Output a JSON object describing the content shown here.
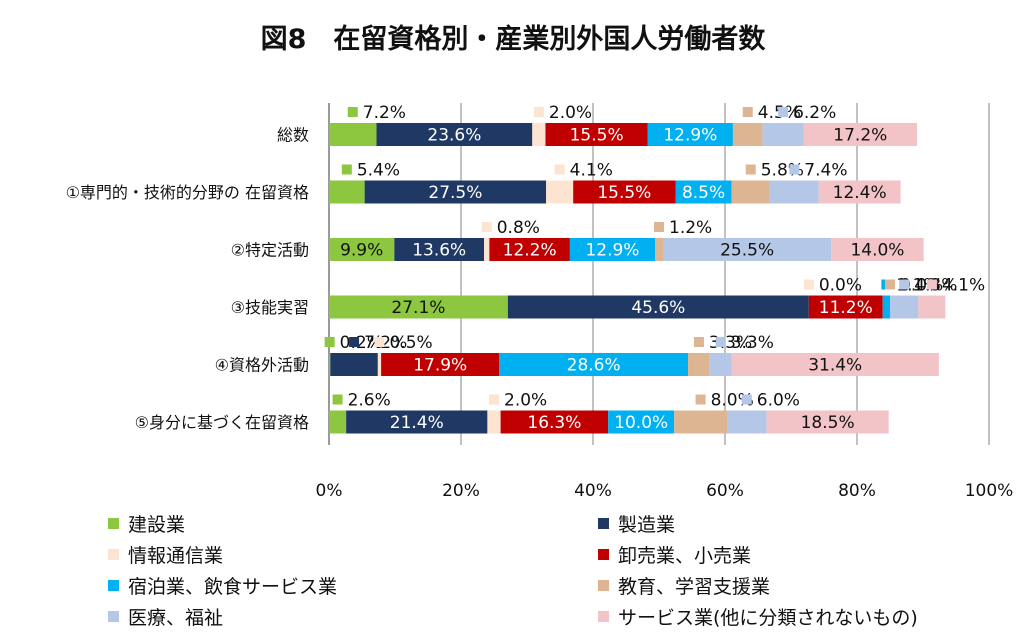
{
  "chart_data": {
    "type": "bar",
    "orientation": "horizontal",
    "stacked": true,
    "percent_stacked": true,
    "title": "図8　在留資格別・産業別外国人労働者数",
    "categories": [
      "総数",
      "①専門的・技術的分野の 在留資格",
      "②特定活動",
      "③技能実習",
      "④資格外活動",
      "⑤身分に基づく在留資格"
    ],
    "series": [
      {
        "name": "建設業",
        "color": "#8dc63f",
        "values": [
          7.2,
          5.4,
          9.9,
          27.1,
          0.2,
          2.6
        ]
      },
      {
        "name": "製造業",
        "color": "#1f3864",
        "values": [
          23.6,
          27.5,
          13.6,
          45.6,
          7.2,
          21.4
        ]
      },
      {
        "name": "情報通信業",
        "color": "#fde4d0",
        "values": [
          2.0,
          4.1,
          0.8,
          0.0,
          0.5,
          2.0
        ]
      },
      {
        "name": "卸売業、小売業",
        "color": "#c00000",
        "values": [
          15.5,
          15.5,
          12.2,
          11.2,
          17.9,
          16.3
        ]
      },
      {
        "name": "宿泊業、飲食サービス業",
        "color": "#00b0f0",
        "values": [
          12.9,
          8.5,
          12.9,
          1.1,
          28.6,
          10.0
        ]
      },
      {
        "name": "教育、学習支援業",
        "color": "#ddb592",
        "values": [
          4.5,
          5.8,
          1.2,
          0.0,
          3.3,
          8.0
        ]
      },
      {
        "name": "医療、福祉",
        "color": "#b4c7e7",
        "values": [
          6.2,
          7.4,
          25.5,
          4.3,
          3.3,
          6.0
        ]
      },
      {
        "name": "サービス業(他に分類されないもの)",
        "color": "#f2c4c8",
        "values": [
          17.2,
          12.4,
          14.0,
          4.1,
          31.4,
          18.5
        ]
      }
    ],
    "inside_labels": [
      [
        null,
        "23.6%",
        null,
        "15.5%",
        "12.9%",
        null,
        null,
        "17.2%"
      ],
      [
        null,
        "27.5%",
        null,
        "15.5%",
        "8.5%",
        null,
        null,
        "12.4%"
      ],
      [
        "9.9%",
        "13.6%",
        null,
        "12.2%",
        "12.9%",
        null,
        "25.5%",
        "14.0%"
      ],
      [
        "27.1%",
        "45.6%",
        null,
        "11.2%",
        null,
        null,
        null,
        null
      ],
      [
        null,
        null,
        null,
        "17.9%",
        "28.6%",
        null,
        null,
        "31.4%"
      ],
      [
        null,
        "21.4%",
        null,
        "16.3%",
        "10.0%",
        null,
        null,
        "18.5%"
      ]
    ],
    "callouts": [
      [
        {
          "s": 0,
          "t": "7.2%"
        },
        {
          "s": 2,
          "t": "2.0%"
        },
        {
          "s": 5,
          "t": "4.5%"
        },
        {
          "s": 6,
          "t": "6.2%"
        }
      ],
      [
        {
          "s": 0,
          "t": "5.4%"
        },
        {
          "s": 2,
          "t": "4.1%"
        },
        {
          "s": 5,
          "t": "5.8%"
        },
        {
          "s": 6,
          "t": "7.4%"
        }
      ],
      [
        {
          "s": 2,
          "t": "0.8%"
        },
        {
          "s": 5,
          "t": "1.2%"
        }
      ],
      [
        {
          "s": 2,
          "t": "0.0%"
        },
        {
          "s": 4,
          "t": "1.1%"
        },
        {
          "s": 5,
          "t": "0.0%"
        },
        {
          "s": 6,
          "t": "4.3%"
        },
        {
          "s": 7,
          "t": "4.1%"
        }
      ],
      [
        {
          "s": 0,
          "t": "0.2%"
        },
        {
          "s": 1,
          "t": "7.2%"
        },
        {
          "s": 2,
          "t": "0.5%"
        },
        {
          "s": 5,
          "t": "3.3%"
        },
        {
          "s": 6,
          "t": "3.3%"
        }
      ],
      [
        {
          "s": 0,
          "t": "2.6%"
        },
        {
          "s": 2,
          "t": "2.0%"
        },
        {
          "s": 5,
          "t": "8.0%"
        },
        {
          "s": 6,
          "t": "6.0%"
        }
      ]
    ],
    "xticks": [
      "0%",
      "20%",
      "40%",
      "60%",
      "80%",
      "100%"
    ],
    "xlim": [
      0,
      100
    ],
    "grid": true,
    "legend_position": "bottom"
  }
}
